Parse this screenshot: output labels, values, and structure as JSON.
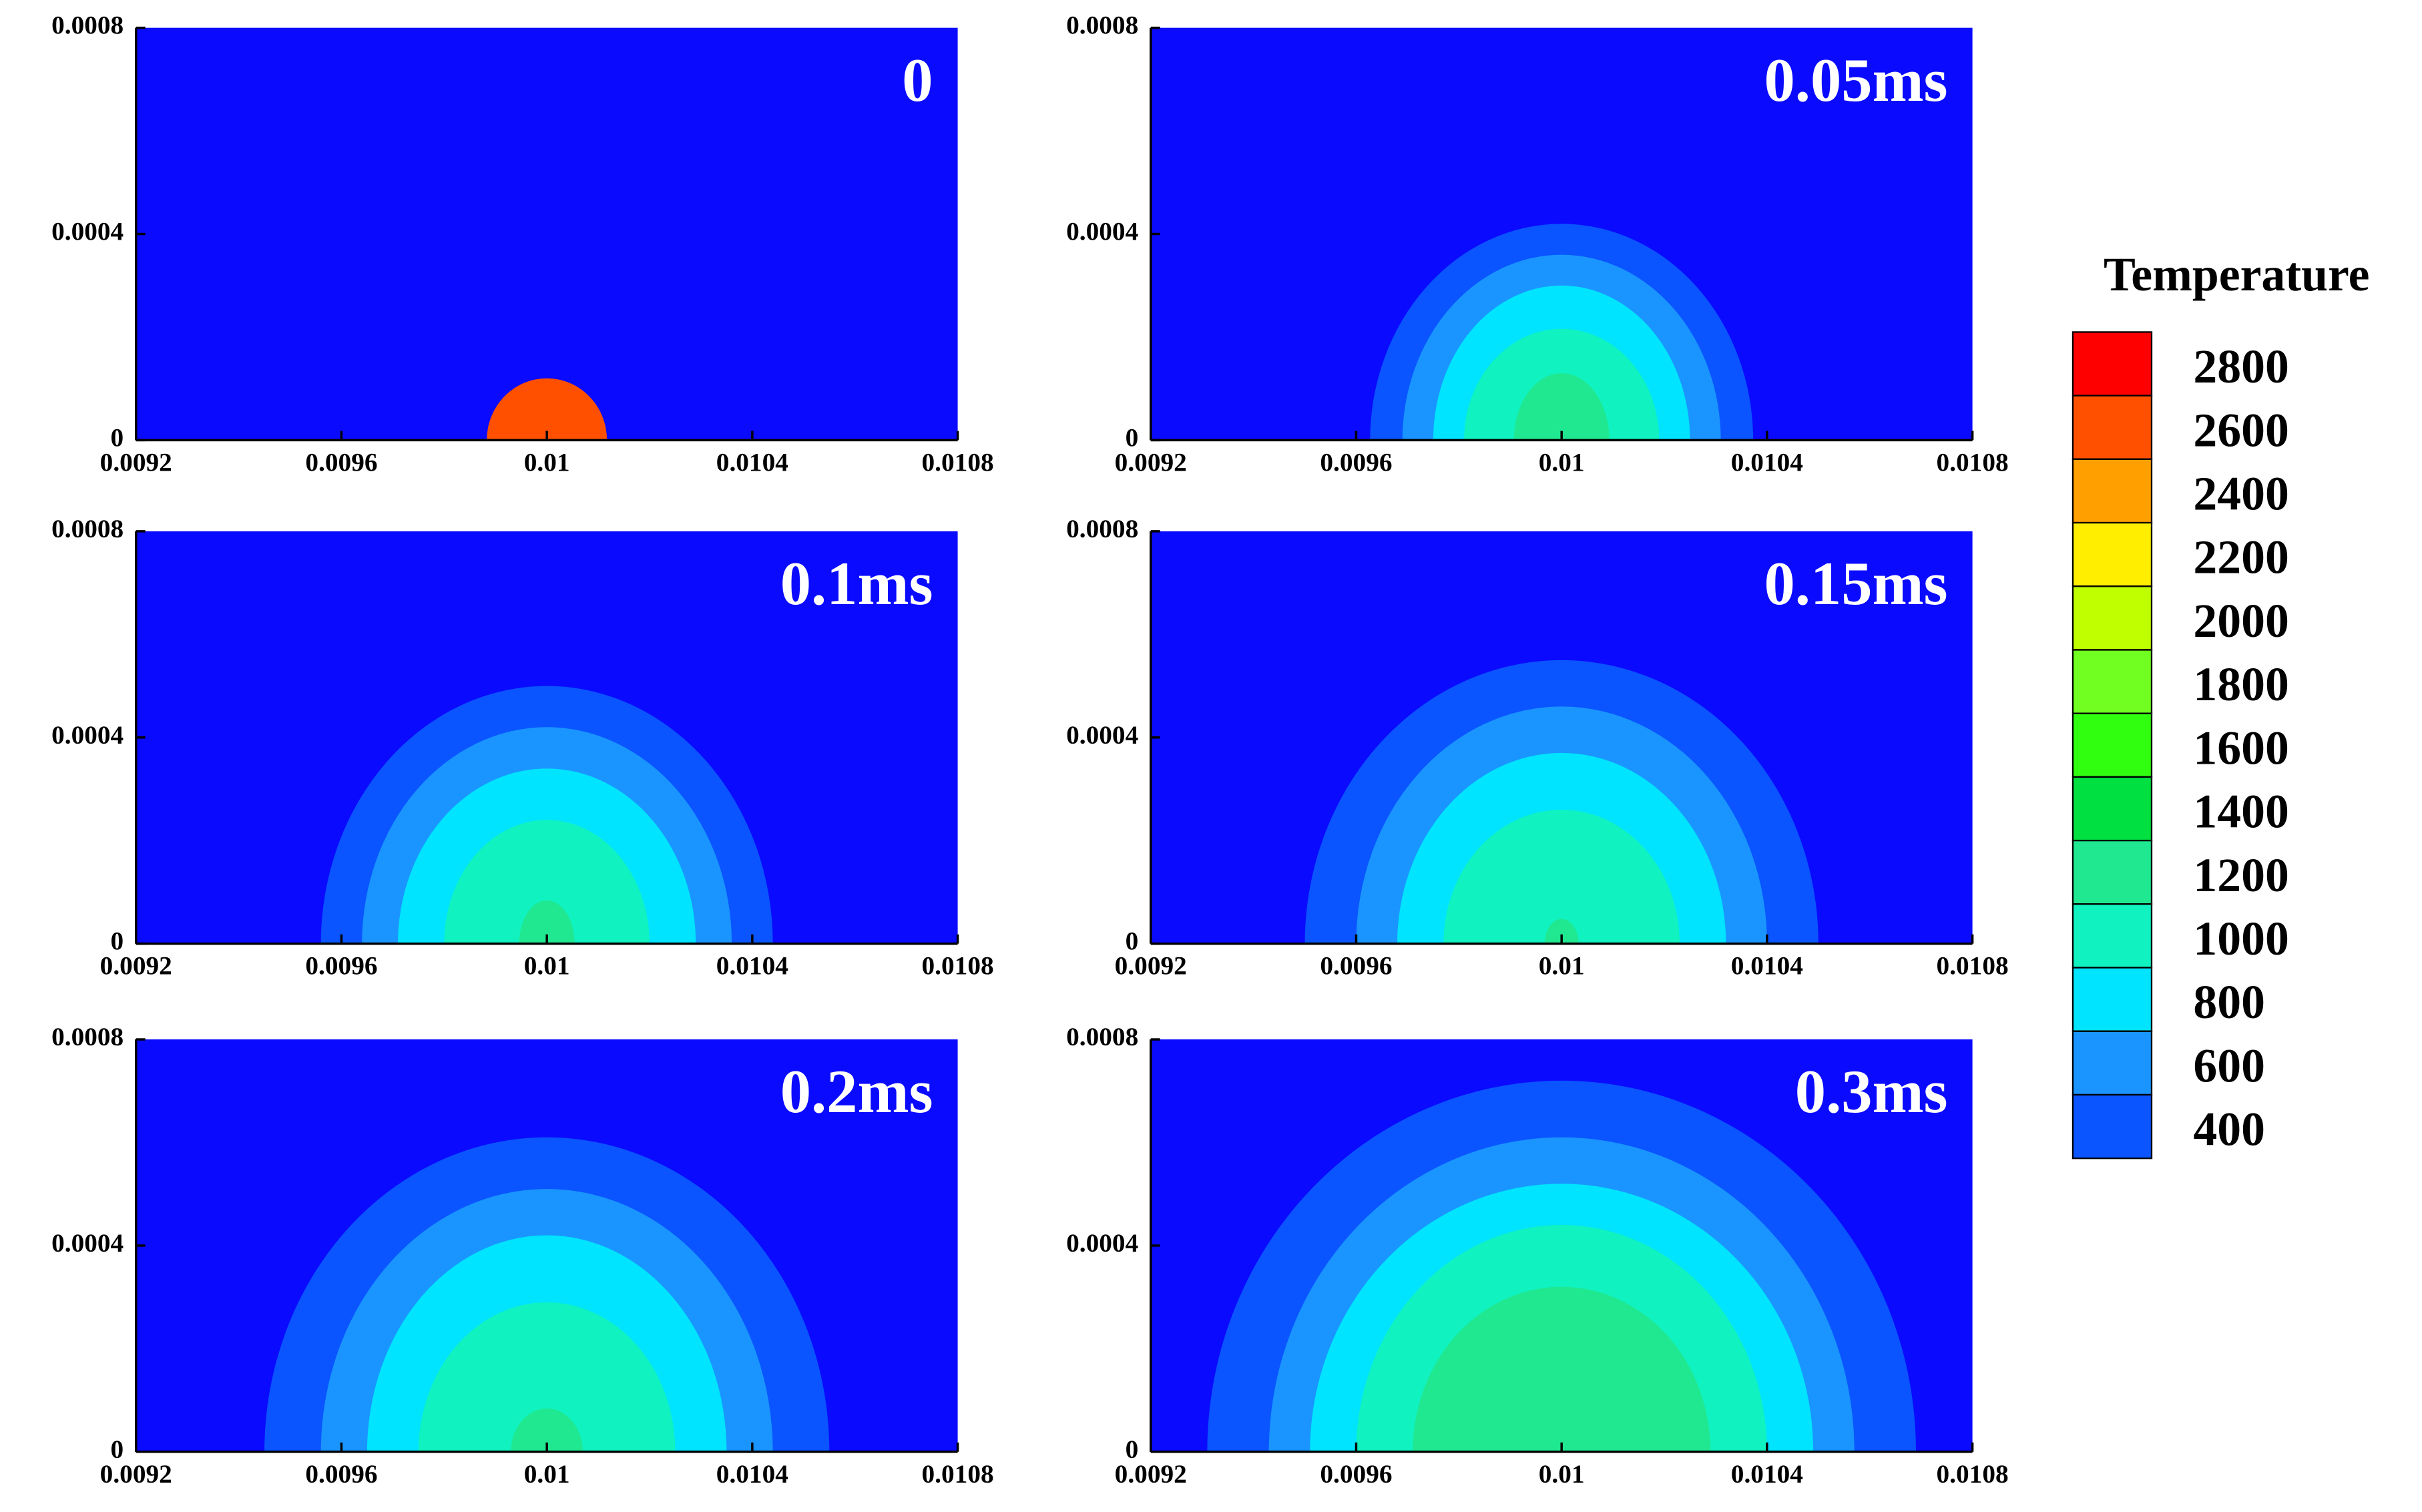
{
  "chart_data": {
    "type": "contour",
    "legend_title": "Temperature",
    "levels": [
      400,
      600,
      800,
      1000,
      1200,
      1400,
      1600,
      1800,
      2000,
      2200,
      2400,
      2600,
      2800
    ],
    "level_colors": [
      "#0a0aff",
      "#0a55ff",
      "#1a95ff",
      "#00e4ff",
      "#10f2c0",
      "#20e890",
      "#00e040",
      "#30ff10",
      "#70ff20",
      "#c0ff00",
      "#ffee00",
      "#ffa000",
      "#ff5000"
    ],
    "top_color": "#ff0000",
    "panels": [
      {
        "label": "0",
        "xlim": [
          0.0092,
          0.0108
        ],
        "ylim": [
          0,
          0.0008
        ],
        "xticks": [
          0.0092,
          0.0096,
          0.01,
          0.0104,
          0.0108
        ],
        "yticks": [
          0,
          0.0004,
          0.0008
        ],
        "center_x": 0.01,
        "regions": [
          {
            "level": 2800,
            "half_width": 0.000117,
            "height": 0.00012
          }
        ]
      },
      {
        "label": "0.05ms",
        "xlim": [
          0.0092,
          0.0108
        ],
        "ylim": [
          0,
          0.0008
        ],
        "xticks": [
          0.0092,
          0.0096,
          0.01,
          0.0104,
          0.0108
        ],
        "yticks": [
          0,
          0.0004,
          0.0008
        ],
        "center_x": 0.01,
        "regions": [
          {
            "level": 600,
            "half_width": 0.000373,
            "height": 0.00042
          },
          {
            "level": 800,
            "half_width": 0.00031,
            "height": 0.00036
          },
          {
            "level": 1000,
            "half_width": 0.00025,
            "height": 0.0003
          },
          {
            "level": 1200,
            "half_width": 0.00019,
            "height": 0.000216
          },
          {
            "level": 1400,
            "half_width": 9.3e-05,
            "height": 0.00013
          }
        ]
      },
      {
        "label": "0.1ms",
        "xlim": [
          0.0092,
          0.0108
        ],
        "ylim": [
          0,
          0.0008
        ],
        "xticks": [
          0.0092,
          0.0096,
          0.01,
          0.0104,
          0.0108
        ],
        "yticks": [
          0,
          0.0004,
          0.0008
        ],
        "center_x": 0.01,
        "regions": [
          {
            "level": 600,
            "half_width": 0.00044,
            "height": 0.0005
          },
          {
            "level": 800,
            "half_width": 0.00036,
            "height": 0.00042
          },
          {
            "level": 1000,
            "half_width": 0.00029,
            "height": 0.00034
          },
          {
            "level": 1200,
            "half_width": 0.0002,
            "height": 0.00024
          },
          {
            "level": 1400,
            "half_width": 5.4e-05,
            "height": 8.4e-05
          }
        ]
      },
      {
        "label": "0.15ms",
        "xlim": [
          0.0092,
          0.0108
        ],
        "ylim": [
          0,
          0.0008
        ],
        "xticks": [
          0.0092,
          0.0096,
          0.01,
          0.0104,
          0.0108
        ],
        "yticks": [
          0,
          0.0004,
          0.0008
        ],
        "center_x": 0.01,
        "regions": [
          {
            "level": 600,
            "half_width": 0.0005,
            "height": 0.00055
          },
          {
            "level": 800,
            "half_width": 0.0004,
            "height": 0.00046
          },
          {
            "level": 1000,
            "half_width": 0.00032,
            "height": 0.00037
          },
          {
            "level": 1200,
            "half_width": 0.00023,
            "height": 0.00026
          },
          {
            "level": 1400,
            "half_width": 3.3e-05,
            "height": 4.8e-05
          }
        ]
      },
      {
        "label": "0.2ms",
        "xlim": [
          0.0092,
          0.0108
        ],
        "ylim": [
          0,
          0.0008
        ],
        "xticks": [
          0.0092,
          0.0096,
          0.01,
          0.0104,
          0.0108
        ],
        "yticks": [
          0,
          0.0004,
          0.0008
        ],
        "center_x": 0.01,
        "regions": [
          {
            "level": 600,
            "half_width": 0.00055,
            "height": 0.00061
          },
          {
            "level": 800,
            "half_width": 0.00044,
            "height": 0.00051
          },
          {
            "level": 1000,
            "half_width": 0.00035,
            "height": 0.00042
          },
          {
            "level": 1200,
            "half_width": 0.00025,
            "height": 0.00029
          },
          {
            "level": 1400,
            "half_width": 7e-05,
            "height": 8.4e-05
          }
        ]
      },
      {
        "label": "0.3ms",
        "xlim": [
          0.0092,
          0.0108
        ],
        "ylim": [
          0,
          0.0008
        ],
        "xticks": [
          0.0092,
          0.0096,
          0.01,
          0.0104,
          0.0108
        ],
        "yticks": [
          0,
          0.0004,
          0.0008
        ],
        "center_x": 0.01,
        "regions": [
          {
            "level": 600,
            "half_width": 0.00069,
            "height": 0.00072
          },
          {
            "level": 800,
            "half_width": 0.00057,
            "height": 0.00061
          },
          {
            "level": 1000,
            "half_width": 0.00049,
            "height": 0.00052
          },
          {
            "level": 1200,
            "half_width": 0.0004,
            "height": 0.00044
          },
          {
            "level": 1400,
            "half_width": 0.00029,
            "height": 0.00032
          }
        ]
      }
    ]
  }
}
